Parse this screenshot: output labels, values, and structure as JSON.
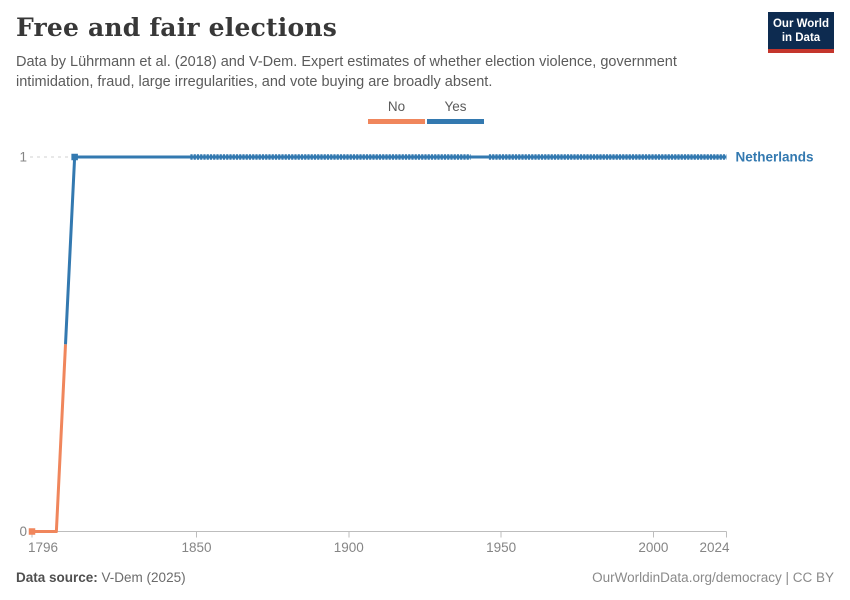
{
  "header": {
    "title": "Free and fair elections",
    "subtitle": "Data by Lührmann et al. (2018) and V-Dem. Expert estimates of whether election violence, government intimidation, fraud, large irregularities, and vote buying are broadly absent.",
    "logo": {
      "line1": "Our World",
      "line2": "in Data"
    }
  },
  "legend": {
    "items": [
      {
        "label": "No",
        "color": "#f0865c"
      },
      {
        "label": "Yes",
        "color": "#3379b0"
      }
    ]
  },
  "chart_data": {
    "type": "line",
    "title": "Free and fair elections",
    "xlabel": "",
    "ylabel": "",
    "xlim": [
      1796,
      2024
    ],
    "ylim": [
      0,
      1
    ],
    "x_ticks": [
      1796,
      1850,
      1900,
      1950,
      2000,
      2024
    ],
    "y_ticks": [
      0,
      1
    ],
    "grid": "dashed horizontal gridline at y=1, solid baseline at y=0",
    "legend_position": "top-center",
    "status_colors": {
      "No": "#f0865c",
      "Yes": "#3379b0"
    },
    "series": [
      {
        "name": "Netherlands",
        "label_color": "#3379b0",
        "points": [
          {
            "year": 1796,
            "value": 0,
            "status": "No"
          },
          {
            "year": 1804,
            "value": 0,
            "status": "No"
          },
          {
            "year": 1810,
            "value": 1,
            "status": "Yes"
          },
          {
            "year": 2024,
            "value": 1,
            "status": "Yes"
          }
        ],
        "point_markers": [
          1796,
          1810
        ],
        "marker_runs": [
          [
            1848,
            1940
          ],
          [
            1946,
            2024
          ]
        ]
      }
    ]
  },
  "footer": {
    "source_label": "Data source:",
    "source_value": "V-Dem (2025)",
    "credit": "OurWorldinData.org/democracy | CC BY"
  },
  "colors": {
    "accent-no": "#f0865c",
    "accent-yes": "#3379b0",
    "logo-bg": "#0d2b50",
    "logo-red": "#c4352c",
    "title": "#383838",
    "text-muted": "#5b5b5b",
    "axis-text": "#858585",
    "grid": "#d2d2d2",
    "axis-line": "#bdbdbd"
  }
}
